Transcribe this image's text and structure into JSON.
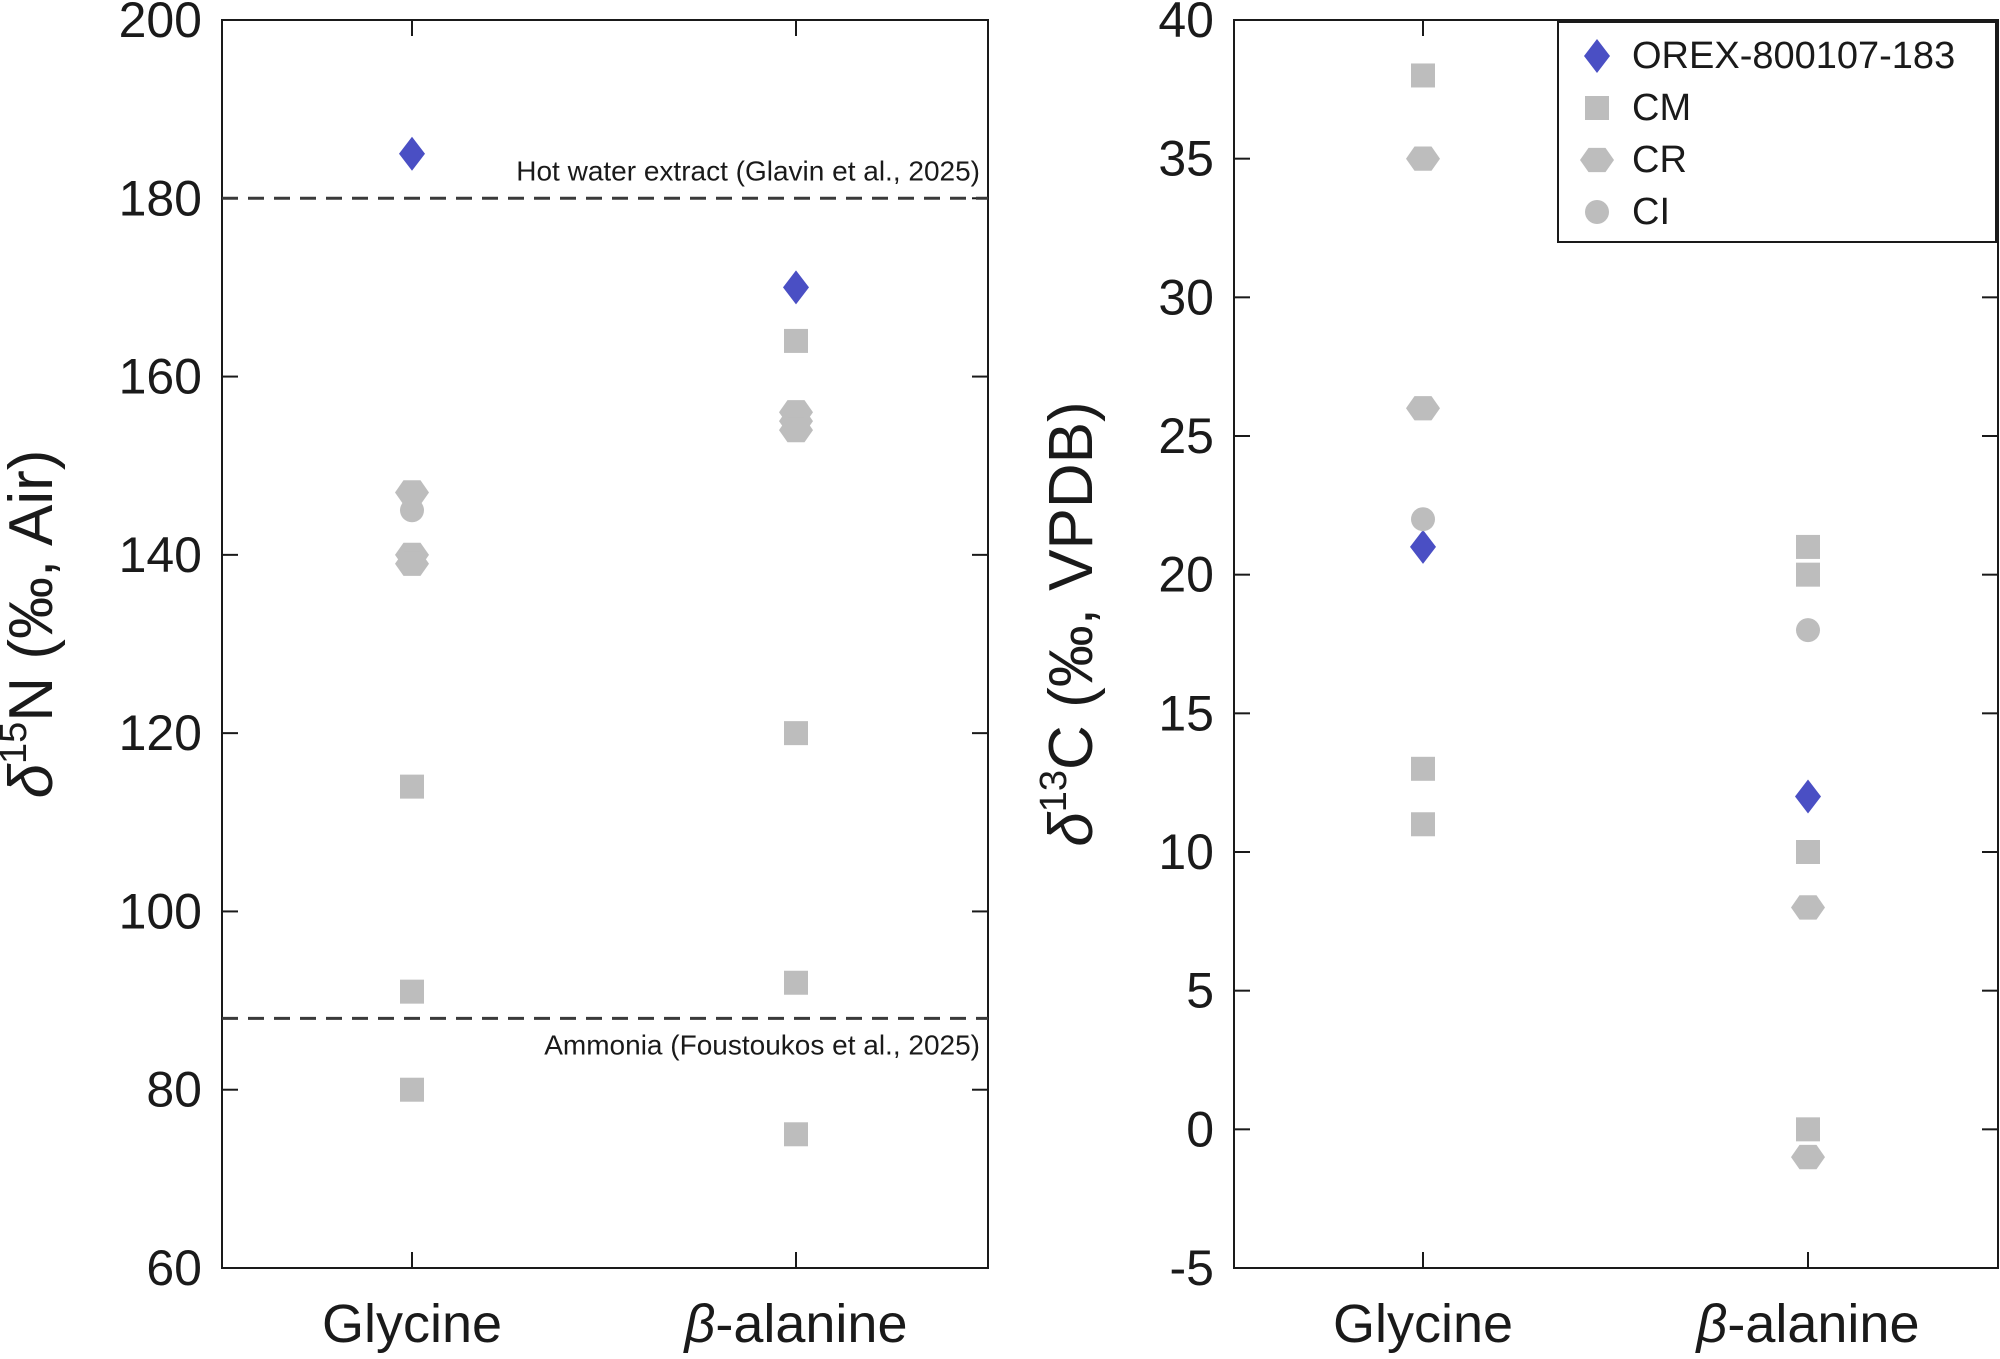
{
  "chart_data": [
    {
      "type": "scatter",
      "ylabel": {
        "delta": "δ",
        "superscript": "15",
        "element": "N",
        "unit": " (‰, Air)"
      },
      "categories": [
        {
          "prefix": "",
          "name": "Glycine"
        },
        {
          "prefix": "β",
          "name": "-alanine"
        }
      ],
      "ylim": [
        60,
        200
      ],
      "yticks": [
        "60",
        "80",
        "100",
        "120",
        "140",
        "160",
        "180",
        "200"
      ],
      "reference_lines": [
        {
          "y": 180,
          "label": "Hot water extract (Glavin et al., 2025)",
          "label_position": "above"
        },
        {
          "y": 88,
          "label": "Ammonia (Foustoukos et al., 2025)",
          "label_position": "below"
        }
      ],
      "series": [
        {
          "name": "OREX-800107-183",
          "marker": "diamond",
          "color": "#4a4fc4",
          "points": [
            {
              "cat": 0,
              "y": 185
            },
            {
              "cat": 1,
              "y": 170
            }
          ]
        },
        {
          "name": "CM",
          "marker": "square",
          "color": "#bdbdbd",
          "points": [
            {
              "cat": 0,
              "y": 114
            },
            {
              "cat": 0,
              "y": 91
            },
            {
              "cat": 0,
              "y": 80
            },
            {
              "cat": 1,
              "y": 164
            },
            {
              "cat": 1,
              "y": 120
            },
            {
              "cat": 1,
              "y": 92
            },
            {
              "cat": 1,
              "y": 75
            }
          ]
        },
        {
          "name": "CR",
          "marker": "hexagon",
          "color": "#bdbdbd",
          "points": [
            {
              "cat": 0,
              "y": 147
            },
            {
              "cat": 0,
              "y": 140
            },
            {
              "cat": 0,
              "y": 139
            },
            {
              "cat": 1,
              "y": 156
            },
            {
              "cat": 1,
              "y": 155
            },
            {
              "cat": 1,
              "y": 154
            }
          ]
        },
        {
          "name": "CI",
          "marker": "circle",
          "color": "#bdbdbd",
          "points": [
            {
              "cat": 0,
              "y": 145
            }
          ]
        }
      ]
    },
    {
      "type": "scatter",
      "ylabel": {
        "delta": "δ",
        "superscript": "13",
        "element": "C",
        "unit": " (‰, VPDB)"
      },
      "categories": [
        {
          "prefix": "",
          "name": "Glycine"
        },
        {
          "prefix": "β",
          "name": "-alanine"
        }
      ],
      "ylim": [
        -5,
        40
      ],
      "yticks": [
        "-5",
        "0",
        "5",
        "10",
        "15",
        "20",
        "25",
        "30",
        "35",
        "40"
      ],
      "legend": {
        "placement": "top-right",
        "entries": [
          {
            "label": "OREX-800107-183",
            "marker": "diamond",
            "color": "#4a4fc4"
          },
          {
            "label": "CM",
            "marker": "square",
            "color": "#bdbdbd"
          },
          {
            "label": "CR",
            "marker": "hexagon",
            "color": "#bdbdbd"
          },
          {
            "label": "CI",
            "marker": "circle",
            "color": "#bdbdbd"
          }
        ]
      },
      "series": [
        {
          "name": "OREX-800107-183",
          "marker": "diamond",
          "color": "#4a4fc4",
          "points": [
            {
              "cat": 0,
              "y": 21
            },
            {
              "cat": 1,
              "y": 12
            }
          ]
        },
        {
          "name": "CM",
          "marker": "square",
          "color": "#bdbdbd",
          "points": [
            {
              "cat": 0,
              "y": 38
            },
            {
              "cat": 0,
              "y": 13
            },
            {
              "cat": 0,
              "y": 11
            },
            {
              "cat": 1,
              "y": 21
            },
            {
              "cat": 1,
              "y": 20
            },
            {
              "cat": 1,
              "y": 10
            },
            {
              "cat": 1,
              "y": 0
            }
          ]
        },
        {
          "name": "CR",
          "marker": "hexagon",
          "color": "#bdbdbd",
          "points": [
            {
              "cat": 0,
              "y": 35
            },
            {
              "cat": 0,
              "y": 26
            },
            {
              "cat": 1,
              "y": 8
            },
            {
              "cat": 1,
              "y": -1
            }
          ]
        },
        {
          "name": "CI",
          "marker": "circle",
          "color": "#bdbdbd",
          "points": [
            {
              "cat": 0,
              "y": 22
            },
            {
              "cat": 1,
              "y": 18
            }
          ]
        }
      ]
    }
  ]
}
